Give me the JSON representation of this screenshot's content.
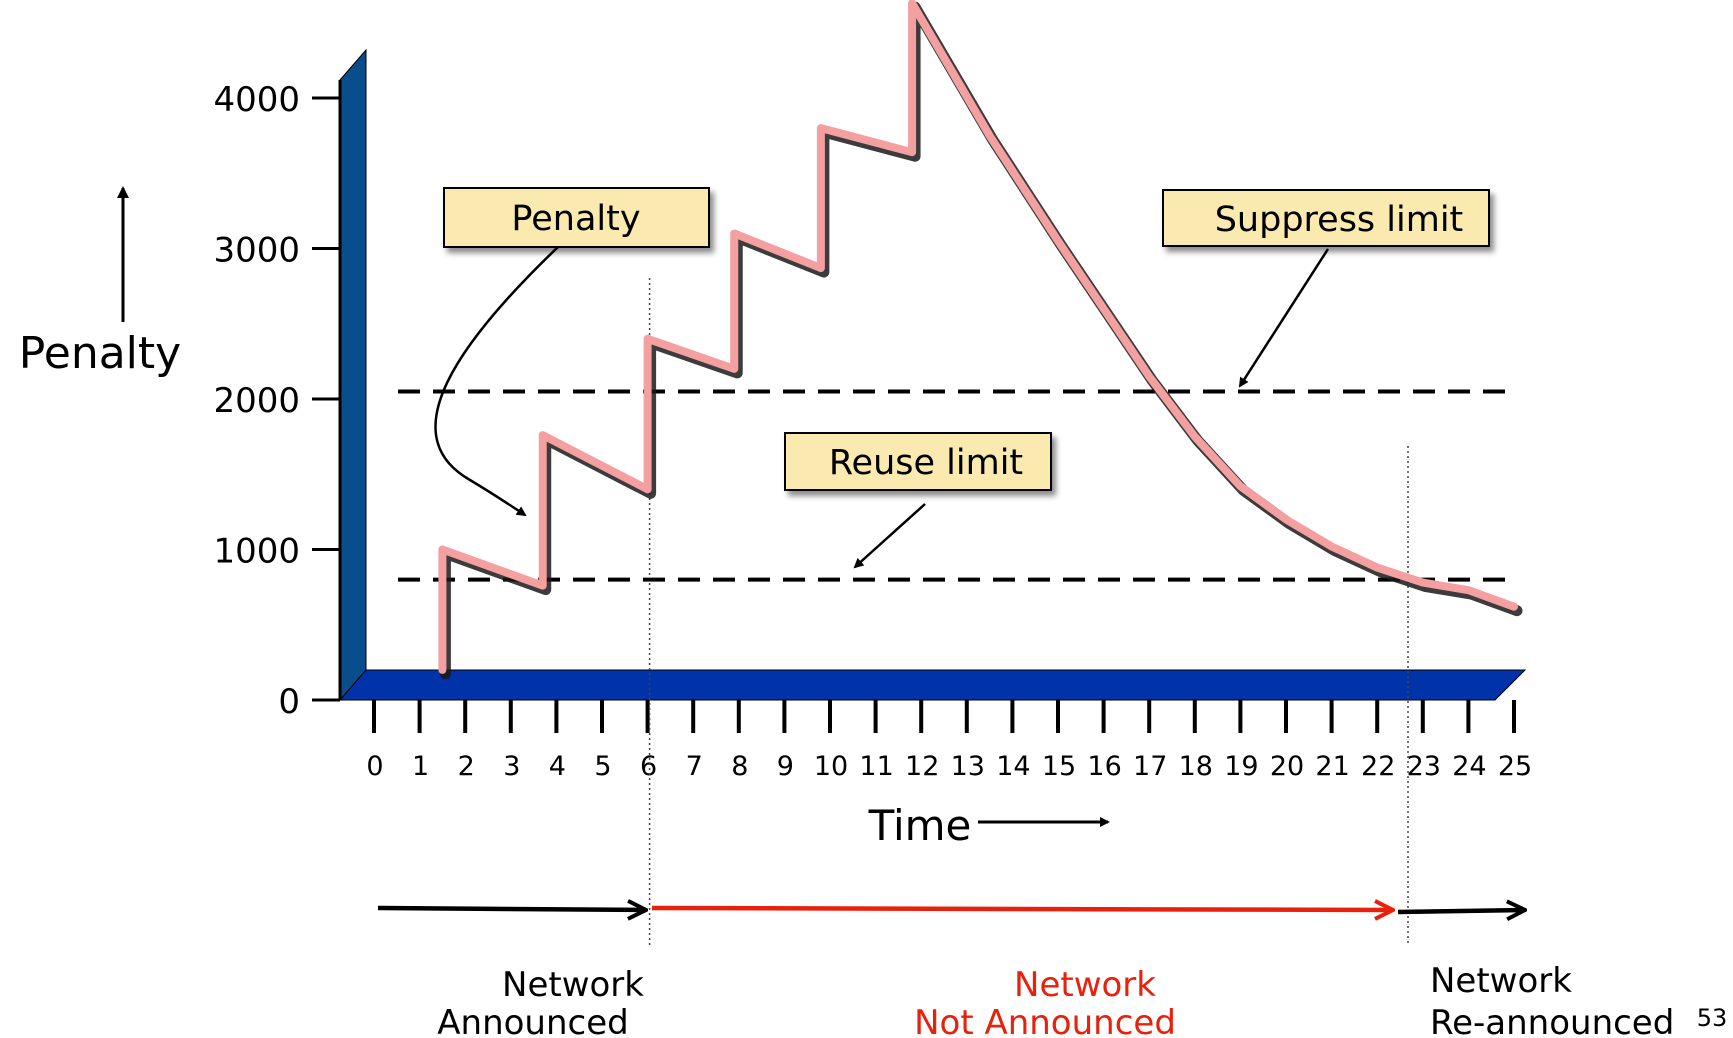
{
  "chart_data": {
    "type": "line",
    "ylabel": "Penalty",
    "xlabel": "Time",
    "x_ticks": [
      0,
      1,
      2,
      3,
      4,
      5,
      6,
      7,
      8,
      9,
      10,
      11,
      12,
      13,
      14,
      15,
      16,
      17,
      18,
      19,
      20,
      21,
      22,
      23,
      24,
      25
    ],
    "y_ticks": [
      0,
      1000,
      2000,
      3000,
      4000
    ],
    "xlim": [
      0,
      25
    ],
    "ylim": [
      0,
      4000
    ],
    "series": [
      {
        "name": "Penalty",
        "color": "#f4a0a0",
        "x": [
          1.5,
          1.5,
          3.7,
          3.7,
          6,
          6,
          7.9,
          7.9,
          9.8,
          9.8,
          11.8,
          11.8,
          13.5,
          15,
          16,
          17,
          18,
          19,
          20,
          21,
          22,
          23,
          24,
          25
        ],
        "y": [
          200,
          1000,
          760,
          1760,
          1400,
          2400,
          2200,
          3100,
          2870,
          3800,
          3640,
          4630,
          3750,
          3050,
          2600,
          2150,
          1750,
          1420,
          1200,
          1020,
          880,
          780,
          730,
          620
        ]
      }
    ],
    "reference_lines": [
      {
        "name": "Suppress limit",
        "y": 2050
      },
      {
        "name": "Reuse limit",
        "y": 800
      }
    ],
    "annotations": {
      "penalty_callout": "Penalty",
      "suppress_callout": "Suppress limit",
      "reuse_callout": "Reuse limit"
    },
    "phases": [
      {
        "label_line1": "Network",
        "label_line2": "Announced",
        "x_start": 0,
        "x_end": 6,
        "color": "#000000"
      },
      {
        "label_line1": "Network",
        "label_line2": "Not Announced",
        "x_start": 6,
        "x_end": 22.5,
        "color": "#e8200c"
      },
      {
        "label_line1": "Network",
        "label_line2": "Re-announced",
        "x_start": 22.5,
        "x_end": 25,
        "color": "#000000"
      }
    ],
    "grid": false,
    "legend": "none"
  },
  "colors": {
    "axis_wall": "#0a4d8c",
    "axis_floor": "#0033aa",
    "penalty_line": "#f4a0a0",
    "callout_fill": "#fbeab0"
  },
  "slide_number": "53"
}
